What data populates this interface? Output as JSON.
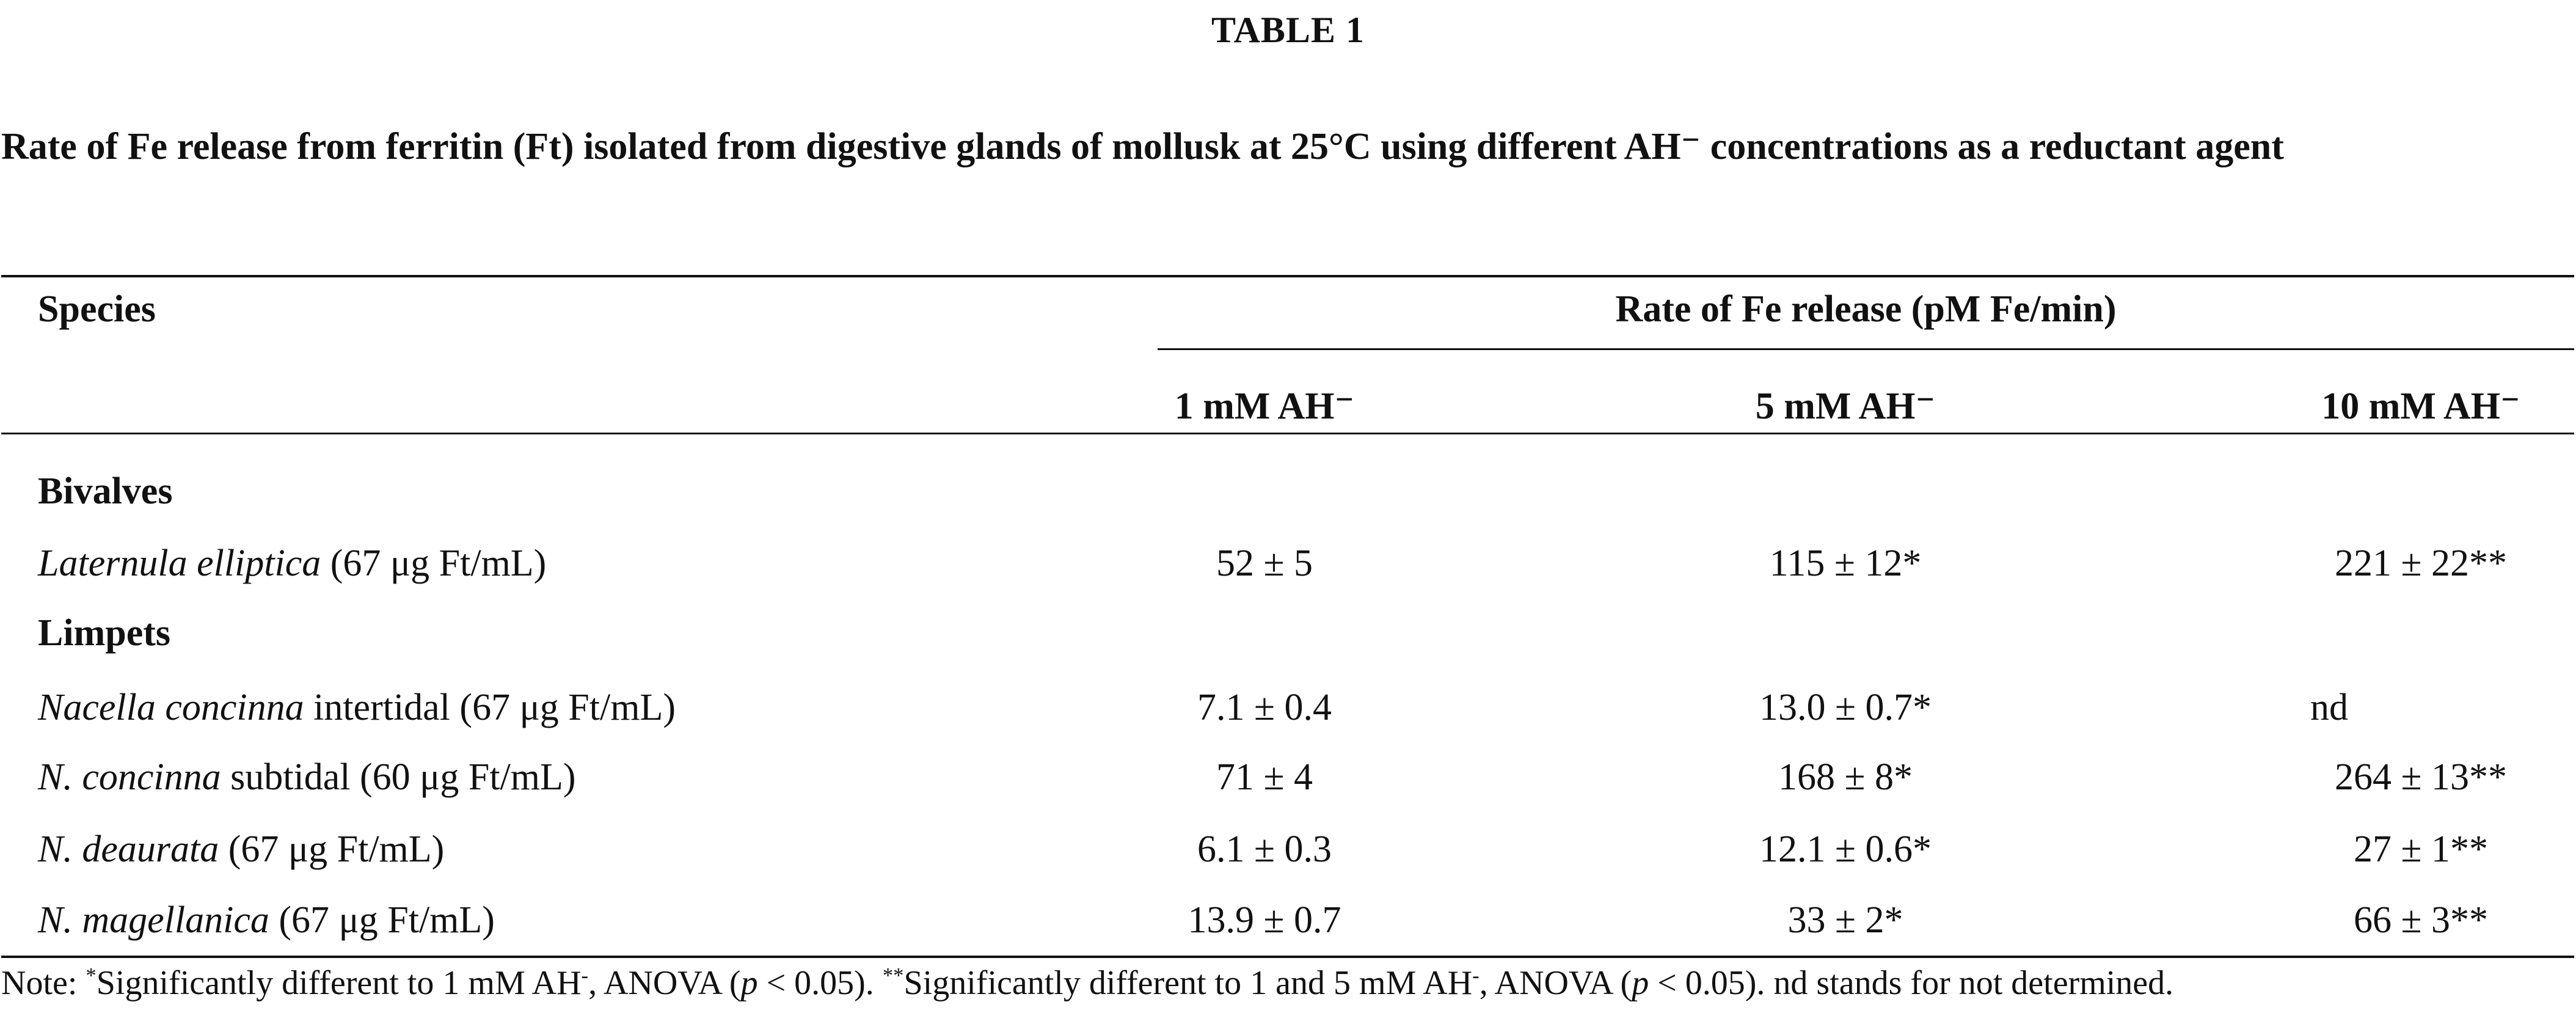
{
  "table_label": "TABLE 1",
  "caption": "Rate of Fe release from ferritin (Ft) isolated from digestive glands of mollusk at 25°C using different AH⁻ concentrations as a reductant agent",
  "header": {
    "species": "Species",
    "group": "Rate of Fe release (pM Fe/min)",
    "columns": [
      "1 mM AH⁻",
      "5 mM AH⁻",
      "10 mM AH⁻"
    ]
  },
  "groups": [
    {
      "name": "Bivalves",
      "rows": [
        {
          "species_italic": "Laternula elliptica",
          "species_rest": " (67 μg Ft/mL)",
          "values": [
            "52 ± 5",
            "115 ± 12*",
            "221 ± 22**"
          ]
        }
      ]
    },
    {
      "name": "Limpets",
      "rows": [
        {
          "species_italic": "Nacella concinna",
          "species_rest": " intertidal (67 μg Ft/mL)",
          "values": [
            "7.1 ± 0.4",
            "13.0 ± 0.7*",
            "nd"
          ]
        },
        {
          "species_italic": "N. concinna",
          "species_rest": " subtidal (60 μg Ft/mL)",
          "values": [
            "71 ± 4",
            "168 ± 8*",
            "264 ± 13**"
          ]
        },
        {
          "species_italic": "N. deaurata",
          "species_rest": " (67 μg Ft/mL)",
          "values": [
            "6.1 ± 0.3",
            "12.1 ± 0.6*",
            "27 ± 1**"
          ]
        },
        {
          "species_italic": "N. magellanica",
          "species_rest": " (67 μg Ft/mL)",
          "values": [
            "13.9 ± 0.7",
            "33 ± 2*",
            "66 ± 3**"
          ]
        }
      ]
    }
  ],
  "note": {
    "prefix": "Note: ",
    "star1": "*",
    "text1": "Significantly different to 1 mM AH",
    "sup1": "-",
    "text2": ", ANOVA (",
    "p1": "p",
    "text3": " < 0.05). ",
    "star2": "**",
    "text4": "Significantly different to 1 and 5 mM AH",
    "sup2": "-",
    "text5": ", ANOVA (",
    "p2": "p",
    "text6": " < 0.05). nd stands for not determined."
  }
}
